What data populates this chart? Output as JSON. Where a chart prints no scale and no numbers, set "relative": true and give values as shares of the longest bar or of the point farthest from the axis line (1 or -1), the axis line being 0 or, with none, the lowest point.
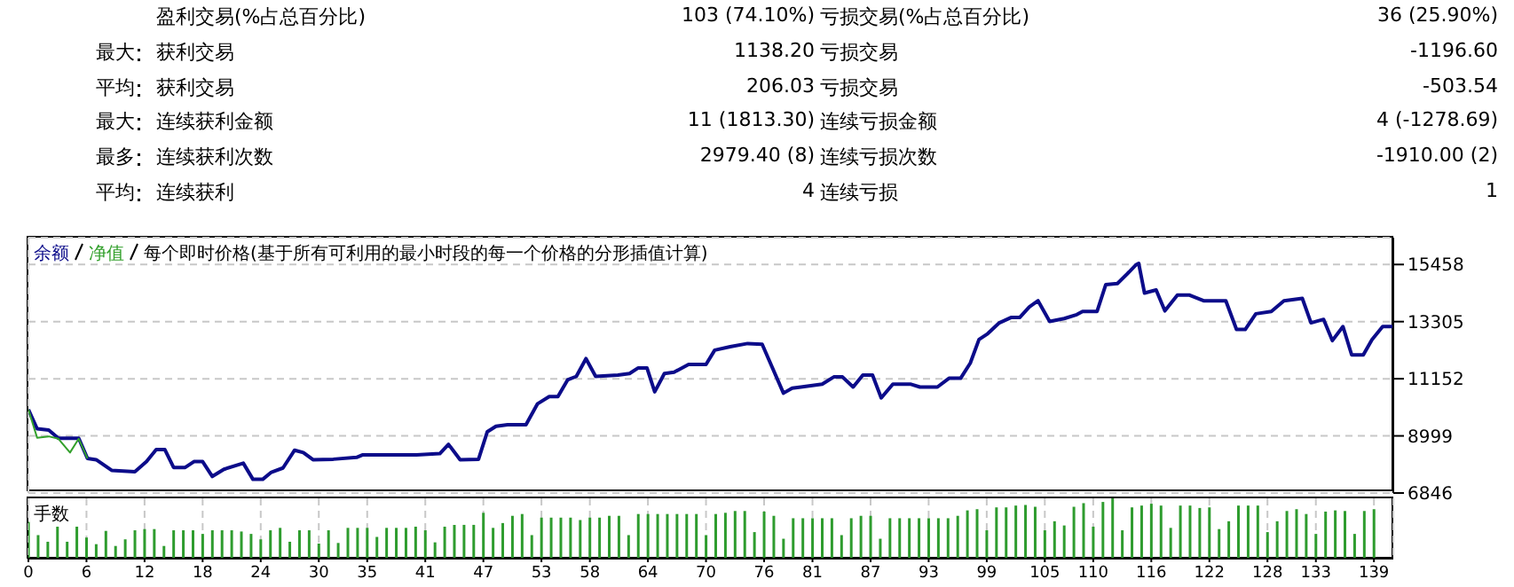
{
  "chart_data": [
    {
      "type": "other",
      "categories": [
        null,
        "最大",
        "平均",
        "最大",
        "最多",
        "平均"
      ],
      "annotations": [
        "盈利交易(%占总百分比)",
        "103 (74.10%)",
        "亏损交易(%占总百分比)",
        "36 (25.90%)",
        "获利交易",
        "1138.20",
        "亏损交易",
        "-1196.60",
        "获利交易",
        "206.03",
        "亏损交易",
        "-503.54",
        "连续获利金额",
        "11 (1813.30)",
        "连续亏损金额",
        "4 (-1278.69)",
        "连续获利次数",
        "2979.40 (8)",
        "连续亏损次数",
        "-1910.00 (2)",
        "连续获利",
        "4",
        "连续亏损",
        "1"
      ]
    },
    {
      "type": "line",
      "subtitle": "每个即时价格(基于所有可利用的最小时段的每一个价格的分形插值计算)",
      "xlim": [
        0,
        141
      ],
      "xticks": [
        0,
        6,
        12,
        18,
        24,
        30,
        35,
        41,
        47,
        53,
        58,
        64,
        70,
        76,
        81,
        87,
        93,
        99,
        105,
        110,
        116,
        122,
        128,
        133,
        139
      ],
      "ylim": [
        6846,
        16470
      ],
      "yticks": [
        6846,
        8999,
        11152,
        13305,
        15458
      ],
      "grid": true,
      "tick_labels": "y",
      "series": [
        {
          "name": "净值",
          "color": "#33a02c",
          "x": [
            0,
            0.9,
            2.1,
            3.1,
            4.3,
            5.2,
            6.1
          ],
          "values": [
            9990,
            8930,
            8980,
            8890,
            8370,
            8890,
            8150
          ]
        },
        {
          "name": "余额",
          "color": "#0c0c8a",
          "x": [
            0,
            0.9,
            2.1,
            3.1,
            5.2,
            6.1,
            7,
            8.6,
            11,
            12.2,
            13.2,
            14.1,
            15,
            16.2,
            17.1,
            18,
            19,
            20.2,
            22.2,
            23.2,
            24.2,
            25.1,
            26.3,
            27.5,
            28.4,
            29.4,
            31.5,
            33.9,
            34.5,
            40.1,
            42.5,
            43.4,
            44.6,
            46.5,
            47.4,
            48.3,
            49.5,
            51.4,
            52.6,
            53.8,
            54.7,
            55.7,
            56.6,
            57.6,
            58.6,
            60.9,
            62.1,
            63,
            63.9,
            64.7,
            65.7,
            66.7,
            68.2,
            70,
            70.9,
            72.5,
            74.3,
            75.8,
            78,
            78.9,
            79.8,
            82,
            83.2,
            84.1,
            85.2,
            86.2,
            87.2,
            88.1,
            89.3,
            91.1,
            92.1,
            93.9,
            95.1,
            96.3,
            97.3,
            98.2,
            99.1,
            100.3,
            101.5,
            102.4,
            103.4,
            104.3,
            105.5,
            107,
            108.3,
            108.9,
            110.4,
            111.3,
            112.5,
            113.5,
            114.4,
            114.7,
            115.3,
            116.5,
            117.4,
            118.7,
            119.9,
            121.4,
            123.7,
            124.8,
            125.7,
            126.8,
            128.4,
            129.7,
            131.6,
            132.5,
            133.8,
            134.7,
            135.8,
            136.7,
            137.9,
            138.8,
            139.9,
            141
          ],
          "values": [
            9990,
            9270,
            9220,
            8910,
            8910,
            8150,
            8100,
            7700,
            7650,
            8030,
            8480,
            8480,
            7810,
            7810,
            8030,
            8030,
            7470,
            7740,
            7970,
            7360,
            7360,
            7630,
            7790,
            8460,
            8370,
            8100,
            8120,
            8190,
            8280,
            8280,
            8330,
            8680,
            8100,
            8120,
            9150,
            9360,
            9420,
            9420,
            10210,
            10480,
            10480,
            11110,
            11240,
            11910,
            11240,
            11290,
            11350,
            11560,
            11560,
            10660,
            11350,
            11400,
            11690,
            11690,
            12230,
            12360,
            12480,
            12450,
            10610,
            10800,
            10840,
            10950,
            11220,
            11220,
            10840,
            11290,
            11290,
            10430,
            10950,
            10950,
            10840,
            10840,
            11170,
            11170,
            11740,
            12630,
            12850,
            13260,
            13460,
            13460,
            13860,
            14090,
            13310,
            13420,
            13570,
            13690,
            13690,
            14700,
            14740,
            15100,
            15440,
            15500,
            14380,
            14500,
            13710,
            14310,
            14310,
            14090,
            14090,
            13010,
            13010,
            13600,
            13690,
            14090,
            14180,
            13260,
            13390,
            12590,
            13120,
            12050,
            12050,
            12630,
            13120,
            13120
          ]
        }
      ]
    },
    {
      "type": "bar",
      "title": "手数",
      "relative": true,
      "color": "#2e9c2e",
      "grid": "x",
      "xlim": [
        0,
        141
      ],
      "xticks": [
        0,
        6,
        12,
        18,
        24,
        30,
        35,
        41,
        47,
        53,
        58,
        64,
        70,
        76,
        81,
        87,
        93,
        99,
        105,
        110,
        116,
        122,
        128,
        133,
        139
      ],
      "x": [
        0,
        1,
        2,
        3,
        4,
        5,
        6,
        7,
        8,
        9,
        10,
        11,
        12,
        13,
        14,
        15,
        16,
        17,
        18,
        19,
        20,
        21,
        22,
        23,
        24,
        25,
        26,
        27,
        28,
        29,
        30,
        31,
        32,
        33,
        34,
        35,
        36,
        37,
        38,
        39,
        40,
        41,
        42,
        43,
        44,
        45,
        46,
        47,
        48,
        49,
        50,
        51,
        52,
        53,
        54,
        55,
        56,
        57,
        58,
        59,
        60,
        61,
        62,
        63,
        64,
        65,
        66,
        67,
        68,
        69,
        70,
        71,
        72,
        73,
        74,
        75,
        76,
        77,
        78,
        79,
        80,
        81,
        82,
        83,
        84,
        85,
        86,
        87,
        88,
        89,
        90,
        91,
        92,
        93,
        94,
        95,
        96,
        97,
        98,
        99,
        100,
        101,
        102,
        103,
        104,
        105,
        106,
        107,
        108,
        109,
        110,
        111,
        112,
        113,
        114,
        115,
        116,
        117,
        118,
        119,
        120,
        121,
        122,
        123,
        124,
        125,
        126,
        127,
        128,
        129,
        130,
        131,
        132,
        133,
        134,
        135,
        136,
        137,
        138,
        139
      ],
      "values": [
        0.61,
        0.39,
        0.28,
        0.53,
        0.28,
        0.53,
        0.35,
        0.24,
        0.46,
        0.21,
        0.32,
        0.47,
        0.49,
        0.49,
        0.21,
        0.47,
        0.47,
        0.47,
        0.41,
        0.47,
        0.47,
        0.47,
        0.45,
        0.41,
        0.32,
        0.47,
        0.51,
        0.28,
        0.47,
        0.47,
        0.25,
        0.47,
        0.26,
        0.51,
        0.51,
        0.51,
        0.36,
        0.51,
        0.51,
        0.51,
        0.53,
        0.47,
        0.27,
        0.53,
        0.56,
        0.56,
        0.56,
        0.76,
        0.51,
        0.59,
        0.71,
        0.74,
        0.39,
        0.68,
        0.68,
        0.68,
        0.68,
        0.64,
        0.68,
        0.68,
        0.71,
        0.71,
        0.39,
        0.74,
        0.74,
        0.74,
        0.74,
        0.74,
        0.74,
        0.74,
        0.39,
        0.74,
        0.76,
        0.79,
        0.79,
        0.44,
        0.78,
        0.71,
        0.33,
        0.67,
        0.67,
        0.67,
        0.67,
        0.67,
        0.39,
        0.67,
        0.71,
        0.71,
        0.33,
        0.67,
        0.67,
        0.67,
        0.67,
        0.67,
        0.67,
        0.67,
        0.71,
        0.8,
        0.82,
        0.47,
        0.85,
        0.85,
        0.88,
        0.89,
        0.86,
        0.47,
        0.62,
        0.55,
        0.86,
        0.92,
        0.53,
        0.94,
        1,
        0.47,
        0.85,
        0.88,
        0.91,
        0.88,
        0.51,
        0.88,
        0.88,
        0.84,
        0.85,
        0.49,
        0.62,
        0.88,
        0.88,
        0.88,
        0.44,
        0.62,
        0.79,
        0.82,
        0.74,
        0.41,
        0.78,
        0.8,
        0.79,
        0.41,
        0.79,
        0.82
      ]
    }
  ]
}
